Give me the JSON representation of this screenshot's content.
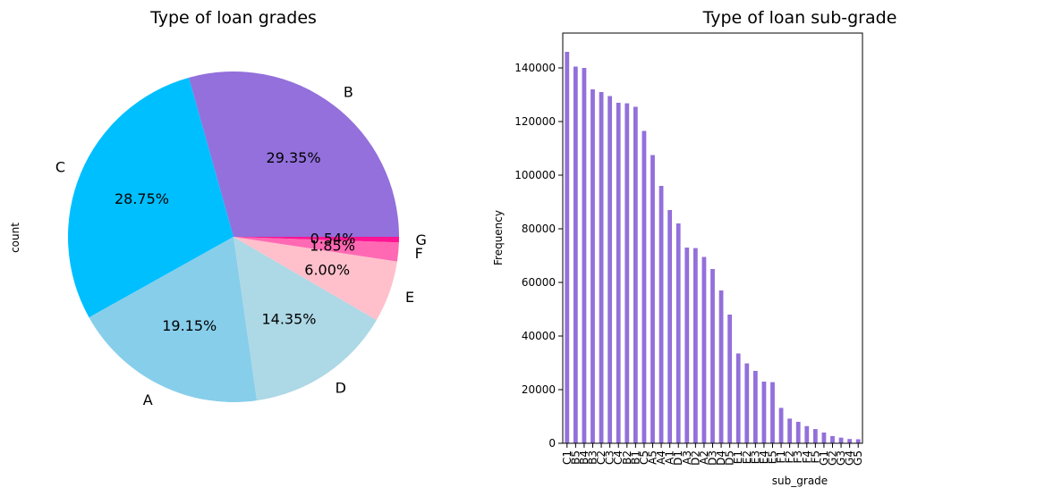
{
  "chart_data": [
    {
      "type": "pie",
      "title": "Type of loan grades",
      "ylabel": "count",
      "slices": [
        {
          "label": "B",
          "pct": 29.35,
          "pct_label": "29.35%",
          "color": "#9370DB"
        },
        {
          "label": "C",
          "pct": 28.75,
          "pct_label": "28.75%",
          "color": "#00BFFF"
        },
        {
          "label": "A",
          "pct": 19.15,
          "pct_label": "19.15%",
          "color": "#87CEEB"
        },
        {
          "label": "D",
          "pct": 14.35,
          "pct_label": "14.35%",
          "color": "#ADD8E6"
        },
        {
          "label": "E",
          "pct": 6.0,
          "pct_label": "6.00%",
          "color": "#FFC0CB"
        },
        {
          "label": "F",
          "pct": 1.85,
          "pct_label": "1.85%",
          "color": "#FF69B4"
        },
        {
          "label": "G",
          "pct": 0.54,
          "pct_label": "0.54%",
          "color": "#FF1493"
        }
      ]
    },
    {
      "type": "bar",
      "title": "Type of loan sub-grade",
      "xlabel": "sub_grade",
      "ylabel": "Frequency",
      "ylim": [
        0,
        153000
      ],
      "yticks": [
        0,
        20000,
        40000,
        60000,
        80000,
        100000,
        120000,
        140000
      ],
      "bar_color": "#9370DB",
      "categories": [
        "C1",
        "B5",
        "B4",
        "B3",
        "C2",
        "C3",
        "C4",
        "B2",
        "B1",
        "C5",
        "A5",
        "A4",
        "A1",
        "D1",
        "A3",
        "D2",
        "A2",
        "D3",
        "D4",
        "D5",
        "E1",
        "E2",
        "E3",
        "E4",
        "E5",
        "F1",
        "F2",
        "F3",
        "F4",
        "F5",
        "G1",
        "G2",
        "G3",
        "G4",
        "G5"
      ],
      "values": [
        146000,
        140500,
        140000,
        132000,
        131000,
        129500,
        127000,
        126800,
        125500,
        116500,
        107500,
        96000,
        87000,
        82000,
        73000,
        72800,
        69500,
        65000,
        57000,
        48000,
        33500,
        29800,
        27000,
        23000,
        22800,
        13200,
        9200,
        8000,
        6400,
        5300,
        4000,
        2700,
        2100,
        1600,
        1500
      ]
    }
  ]
}
